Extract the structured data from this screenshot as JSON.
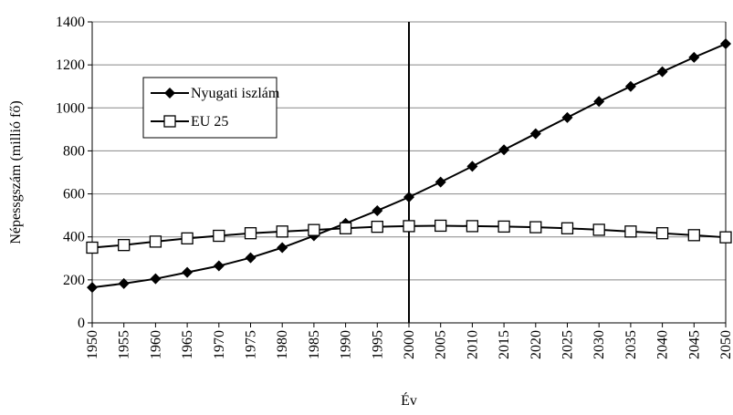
{
  "chart_data": {
    "type": "line",
    "x": [
      1950,
      1955,
      1960,
      1965,
      1970,
      1975,
      1980,
      1985,
      1990,
      1995,
      2000,
      2005,
      2010,
      2015,
      2020,
      2025,
      2030,
      2035,
      2040,
      2045,
      2050
    ],
    "series": [
      {
        "name": "Nyugati iszlám",
        "color": "#000000",
        "marker": "diamond",
        "values": [
          165,
          183,
          205,
          235,
          265,
          303,
          350,
          405,
          463,
          522,
          585,
          655,
          728,
          805,
          880,
          955,
          1030,
          1100,
          1168,
          1235,
          1298
        ]
      },
      {
        "name": "EU 25",
        "color": "#000000",
        "marker": "square",
        "values": [
          350,
          362,
          378,
          393,
          405,
          417,
          425,
          432,
          440,
          447,
          450,
          452,
          450,
          448,
          445,
          440,
          433,
          425,
          417,
          408,
          398
        ]
      }
    ],
    "xlim": [
      1950,
      2050
    ],
    "xticks": [
      1950,
      1955,
      1960,
      1965,
      1970,
      1975,
      1980,
      1985,
      1990,
      1995,
      2000,
      2005,
      2010,
      2015,
      2020,
      2025,
      2030,
      2035,
      2040,
      2045,
      2050
    ],
    "ylim": [
      0,
      1400
    ],
    "yticks": [
      0,
      200,
      400,
      600,
      800,
      1000,
      1200,
      1400
    ],
    "xlabel": "Év",
    "ylabel": "Népessgszám (millió fő)",
    "vline": 2000,
    "grid": true,
    "legend": "upper left"
  }
}
